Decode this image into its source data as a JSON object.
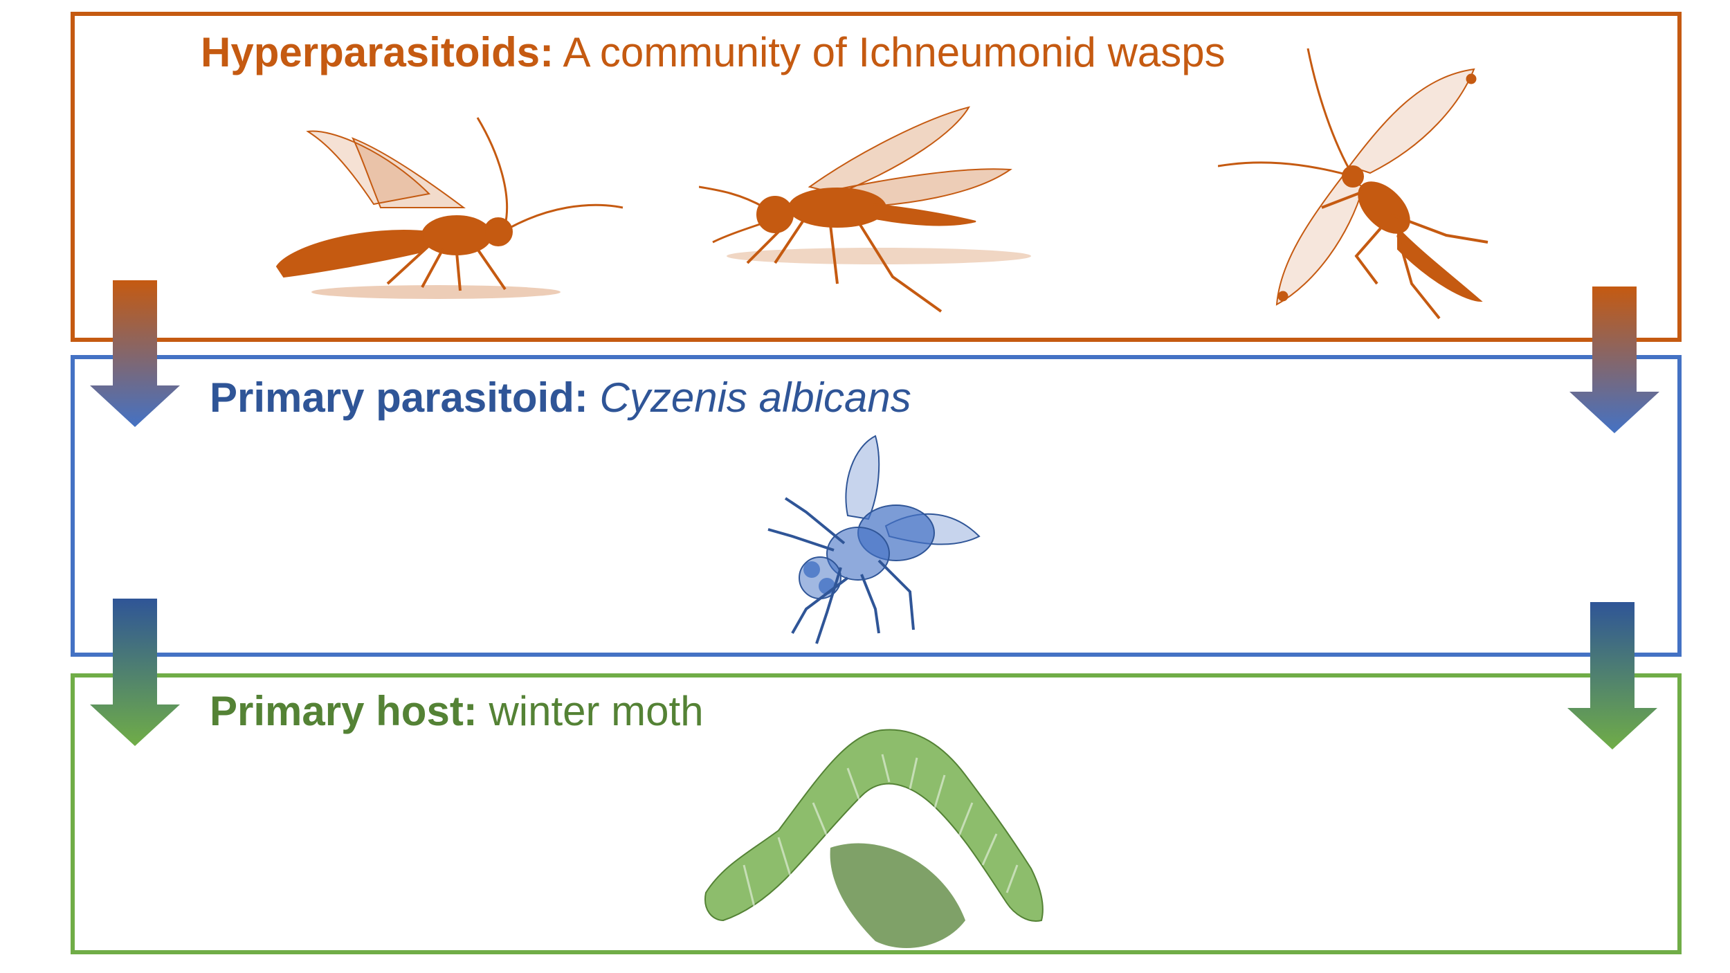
{
  "tiers": {
    "hyperparasitoids": {
      "label_bold": "Hyperparasitoids:",
      "label_rest": " A community of Ichneumonid wasps",
      "color": "#C55A11",
      "icons": [
        "wasp-icon",
        "wasp-icon",
        "wasp-icon"
      ]
    },
    "primary_parasitoid": {
      "label_bold": "Primary parasitoid:",
      "label_rest": "Cyzenis albicans",
      "color": "#4472C4",
      "icon": "fly-icon"
    },
    "primary_host": {
      "label_bold": "Primary host:",
      "label_rest": " winter moth",
      "color": "#70AD47",
      "icon": "caterpillar-icon"
    }
  },
  "arrows": {
    "upper_gradient": [
      "#C55A11",
      "#4472C4"
    ],
    "lower_gradient": [
      "#2F5597",
      "#70AD47"
    ]
  }
}
